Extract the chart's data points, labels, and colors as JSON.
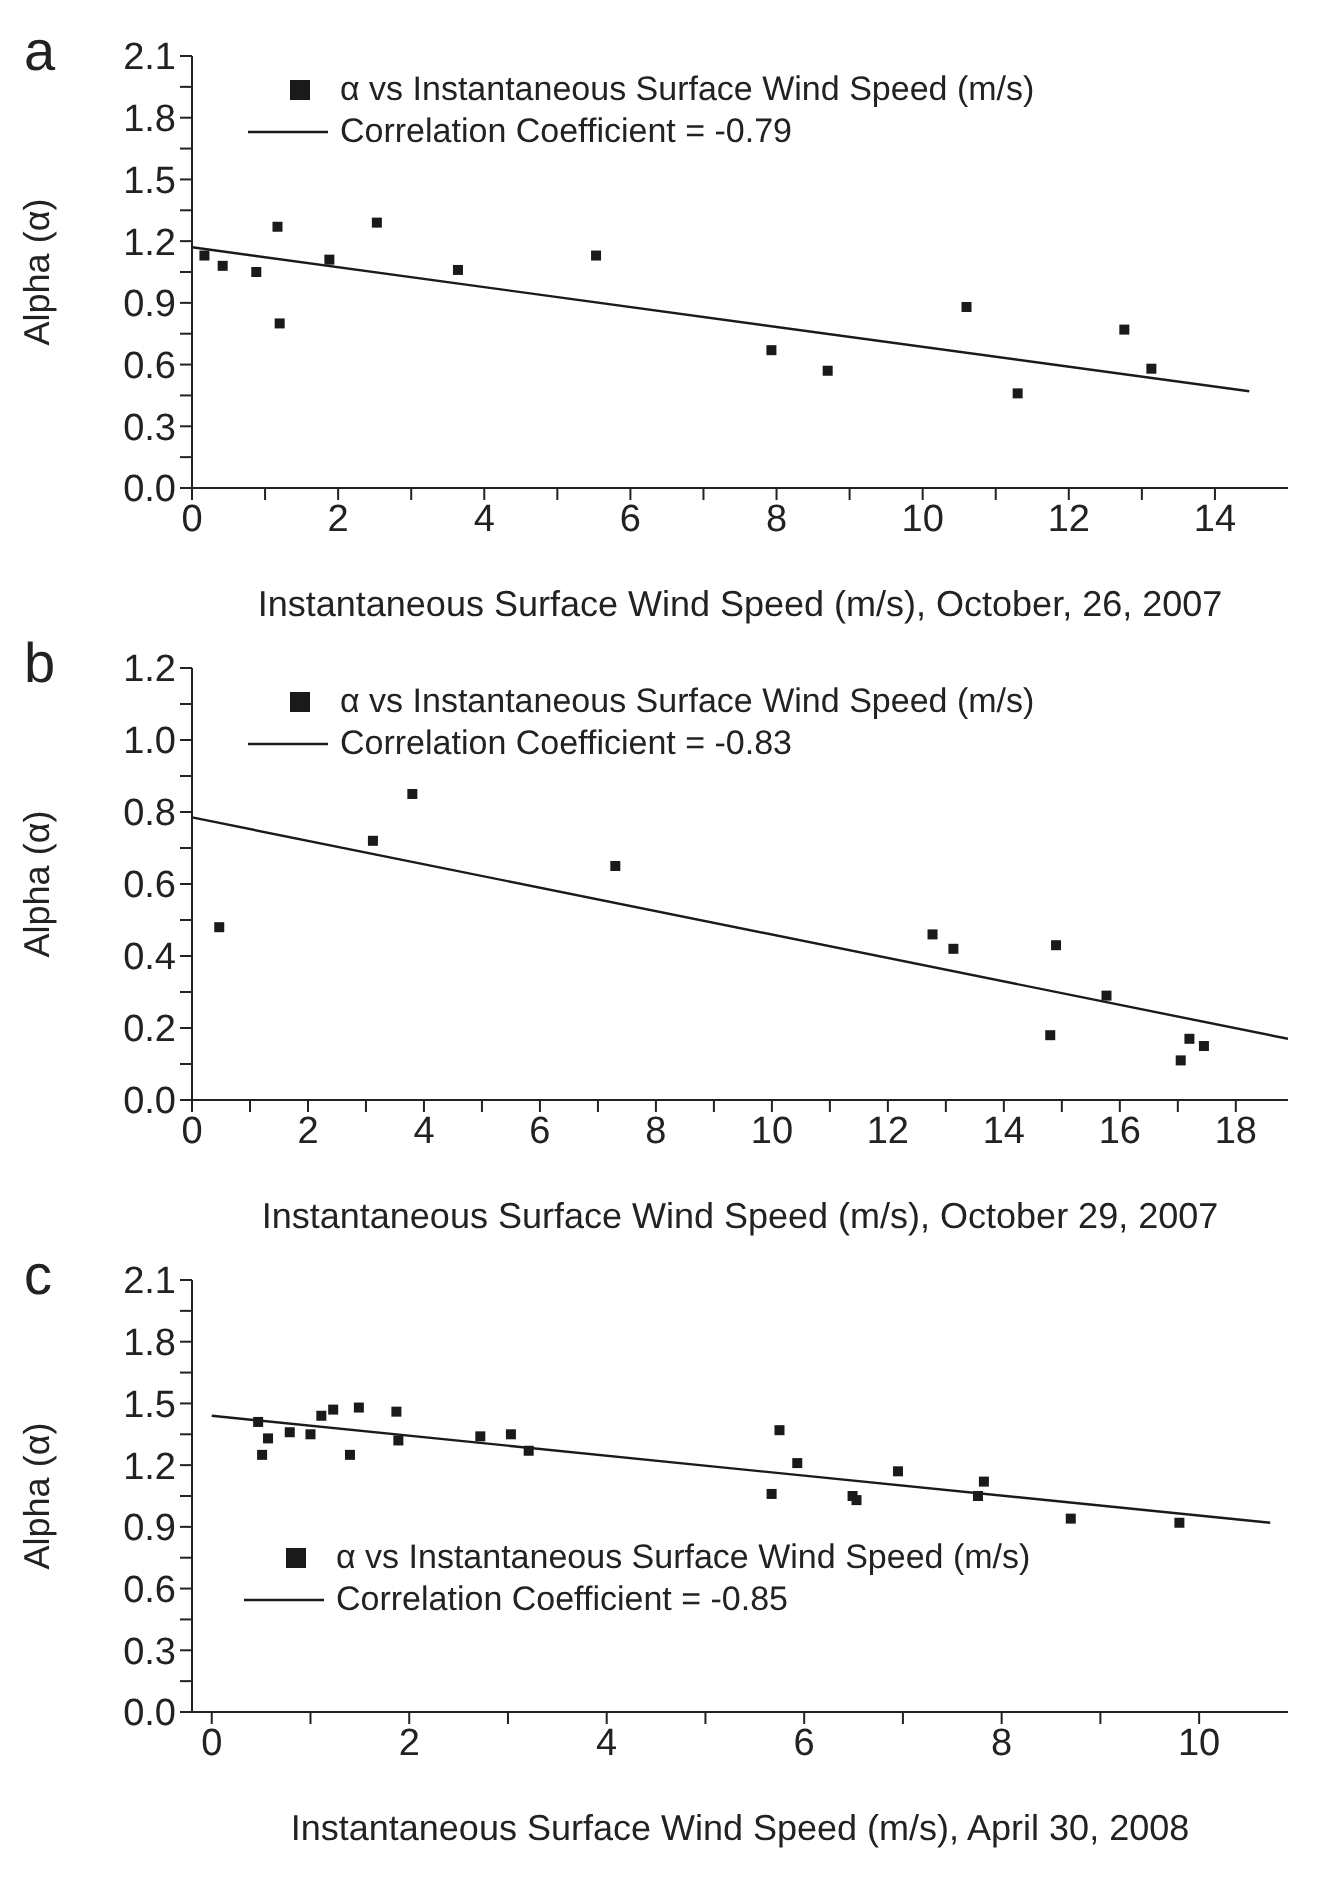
{
  "chart_data": [
    {
      "type": "scatter",
      "title": "a",
      "xlabel": "Instantaneous Surface Wind Speed (m/s), October, 26, 2007",
      "ylabel": "Alpha (α)",
      "xlim": [
        0,
        15
      ],
      "xticks": [
        0,
        {
          "value": 1,
          "label": null
        },
        2,
        {
          "value": 3,
          "label": null
        },
        4,
        {
          "value": 5,
          "label": null
        },
        6,
        {
          "value": 7,
          "label": null
        },
        8,
        {
          "value": 9,
          "label": null
        },
        10,
        {
          "value": 11,
          "label": null
        },
        12,
        {
          "value": 13,
          "label": null
        },
        14
      ],
      "ylim": [
        0,
        2.1
      ],
      "yticks": [
        {
          "value": 0,
          "label": "0.0"
        },
        {
          "value": 0.15,
          "label": null
        },
        {
          "value": 0.3,
          "label": "0.3"
        },
        {
          "value": 0.45,
          "label": null
        },
        {
          "value": 0.6,
          "label": "0.6"
        },
        {
          "value": 0.75,
          "label": null
        },
        {
          "value": 0.9,
          "label": "0.9"
        },
        {
          "value": 1.05,
          "label": null
        },
        {
          "value": 1.2,
          "label": "1.2"
        },
        {
          "value": 1.35,
          "label": null
        },
        {
          "value": 1.5,
          "label": "1.5"
        },
        {
          "value": 1.65,
          "label": null
        },
        {
          "value": 1.8,
          "label": "1.8"
        },
        {
          "value": 1.95,
          "label": null
        },
        {
          "value": 2.1,
          "label": "2.1"
        }
      ],
      "grid": false,
      "legend": "top left",
      "series": [
        {
          "type": "scatter",
          "marker": "square",
          "name": "α vs Instantaneous Surface Wind Speed (m/s)",
          "color": "#1a1a1a",
          "x": [
            0.17,
            0.42,
            0.88,
            1.17,
            1.2,
            1.88,
            2.53,
            3.64,
            5.53,
            7.93,
            8.7,
            10.6,
            11.3,
            12.76,
            13.13
          ],
          "values": [
            1.13,
            1.08,
            1.05,
            1.27,
            0.8,
            1.11,
            1.29,
            1.06,
            1.13,
            0.67,
            0.57,
            0.88,
            0.46,
            0.77,
            0.58
          ]
        },
        {
          "type": "line",
          "name": "Correlation Coefficient = -0.79",
          "color": "#1a1a1a",
          "line_style": "solid",
          "x": [
            0,
            14.47
          ],
          "values": [
            1.17,
            0.47
          ]
        }
      ]
    },
    {
      "type": "scatter",
      "title": "b",
      "xlabel": "Instantaneous Surface Wind Speed (m/s), October 29, 2007",
      "ylabel": "Alpha (α)",
      "xlim": [
        0,
        18.9
      ],
      "xticks": [
        0,
        {
          "value": 1,
          "label": null
        },
        2,
        {
          "value": 3,
          "label": null
        },
        4,
        {
          "value": 5,
          "label": null
        },
        6,
        {
          "value": 7,
          "label": null
        },
        8,
        {
          "value": 9,
          "label": null
        },
        10,
        {
          "value": 11,
          "label": null
        },
        12,
        {
          "value": 13,
          "label": null
        },
        14,
        {
          "value": 15,
          "label": null
        },
        16,
        {
          "value": 17,
          "label": null
        },
        18
      ],
      "ylim": [
        0,
        1.2
      ],
      "yticks": [
        {
          "value": 0,
          "label": "0.0"
        },
        {
          "value": 0.1,
          "label": null
        },
        {
          "value": 0.2,
          "label": "0.2"
        },
        {
          "value": 0.3,
          "label": null
        },
        {
          "value": 0.4,
          "label": "0.4"
        },
        {
          "value": 0.5,
          "label": null
        },
        {
          "value": 0.6,
          "label": "0.6"
        },
        {
          "value": 0.7,
          "label": null
        },
        {
          "value": 0.8,
          "label": "0.8"
        },
        {
          "value": 0.9,
          "label": null
        },
        {
          "value": 1,
          "label": "1.0"
        },
        {
          "value": 1.1,
          "label": null
        },
        {
          "value": 1.2,
          "label": "1.2"
        }
      ],
      "grid": false,
      "legend": "top left",
      "series": [
        {
          "type": "scatter",
          "marker": "square",
          "name": "α vs Instantaneous Surface Wind Speed (m/s)",
          "color": "#1a1a1a",
          "x": [
            0.47,
            3.12,
            3.8,
            7.3,
            12.77,
            13.13,
            14.8,
            14.9,
            15.77,
            17.05,
            17.2,
            17.45
          ],
          "values": [
            0.48,
            0.72,
            0.85,
            0.65,
            0.46,
            0.42,
            0.18,
            0.43,
            0.29,
            0.11,
            0.17,
            0.15
          ]
        },
        {
          "type": "line",
          "name": "Correlation Coefficient = -0.83",
          "color": "#1a1a1a",
          "line_style": "solid",
          "x": [
            0,
            18.9
          ],
          "values": [
            0.785,
            0.17
          ]
        }
      ]
    },
    {
      "type": "scatter",
      "title": "c",
      "xlabel": "Instantaneous Surface Wind Speed (m/s), April 30, 2008",
      "ylabel": "Alpha (α)",
      "xlim": [
        -0.2,
        10.9
      ],
      "xticks": [
        0,
        {
          "value": 1,
          "label": null
        },
        2,
        {
          "value": 3,
          "label": null
        },
        4,
        {
          "value": 5,
          "label": null
        },
        6,
        {
          "value": 7,
          "label": null
        },
        8,
        {
          "value": 9,
          "label": null
        },
        10
      ],
      "ylim": [
        0,
        2.1
      ],
      "yticks": [
        {
          "value": 0,
          "label": "0.0"
        },
        {
          "value": 0.15,
          "label": null
        },
        {
          "value": 0.3,
          "label": "0.3"
        },
        {
          "value": 0.45,
          "label": null
        },
        {
          "value": 0.6,
          "label": "0.6"
        },
        {
          "value": 0.75,
          "label": null
        },
        {
          "value": 0.9,
          "label": "0.9"
        },
        {
          "value": 1.05,
          "label": null
        },
        {
          "value": 1.2,
          "label": "1.2"
        },
        {
          "value": 1.35,
          "label": null
        },
        {
          "value": 1.5,
          "label": "1.5"
        },
        {
          "value": 1.65,
          "label": null
        },
        {
          "value": 1.8,
          "label": "1.8"
        },
        {
          "value": 1.95,
          "label": null
        },
        {
          "value": 2.1,
          "label": "2.1"
        }
      ],
      "grid": false,
      "legend": "bottom left",
      "series": [
        {
          "type": "scatter",
          "marker": "square",
          "name": "α vs Instantaneous Surface Wind Speed (m/s)",
          "color": "#1a1a1a",
          "x": [
            0.47,
            0.51,
            0.57,
            0.79,
            1.0,
            1.11,
            1.23,
            1.4,
            1.49,
            1.87,
            1.89,
            2.72,
            3.03,
            3.21,
            5.67,
            5.75,
            5.93,
            6.49,
            6.53,
            6.95,
            7.76,
            7.82,
            8.7,
            9.8
          ],
          "values": [
            1.41,
            1.25,
            1.33,
            1.36,
            1.35,
            1.44,
            1.47,
            1.25,
            1.48,
            1.46,
            1.32,
            1.34,
            1.35,
            1.27,
            1.06,
            1.37,
            1.21,
            1.05,
            1.03,
            1.17,
            1.05,
            1.12,
            0.94,
            0.92
          ]
        },
        {
          "type": "line",
          "name": "Correlation Coefficient = -0.85",
          "color": "#1a1a1a",
          "line_style": "solid",
          "x": [
            0,
            10.72
          ],
          "values": [
            1.44,
            0.92
          ]
        }
      ]
    }
  ]
}
